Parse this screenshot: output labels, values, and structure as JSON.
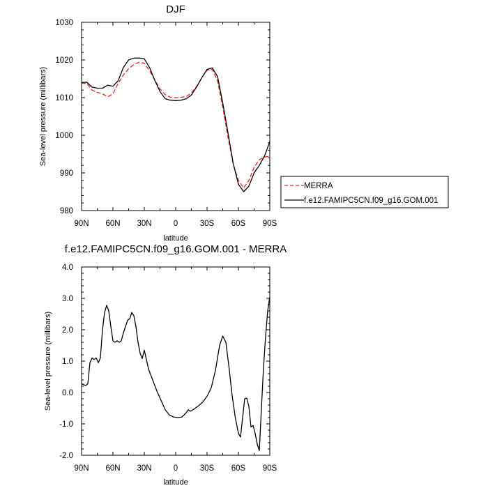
{
  "chart_data": [
    {
      "type": "line",
      "title": "DJF",
      "xlabel": "latitude",
      "ylabel": "Sea-level pressure (millibars)",
      "xlim": [
        90,
        -90
      ],
      "ylim": [
        980,
        1030
      ],
      "x_ticks": [
        {
          "value": 90,
          "label": "90N"
        },
        {
          "value": 60,
          "label": "60N"
        },
        {
          "value": 30,
          "label": "30N"
        },
        {
          "value": 0,
          "label": "0"
        },
        {
          "value": -30,
          "label": "30S"
        },
        {
          "value": -60,
          "label": "60S"
        },
        {
          "value": -90,
          "label": "90S"
        }
      ],
      "y_ticks": [
        {
          "value": 980,
          "label": "980"
        },
        {
          "value": 990,
          "label": "990"
        },
        {
          "value": 1000,
          "label": "1000"
        },
        {
          "value": 1010,
          "label": "1010"
        },
        {
          "value": 1020,
          "label": "1020"
        },
        {
          "value": 1030,
          "label": "1030"
        }
      ],
      "legend_position": "right",
      "series": [
        {
          "name": "MERRA",
          "color": "#e8201e",
          "dash": "dashed",
          "x": [
            90,
            85,
            80,
            75,
            70,
            65,
            60,
            55,
            50,
            45,
            40,
            35,
            30,
            25,
            20,
            15,
            10,
            5,
            0,
            -5,
            -10,
            -15,
            -20,
            -25,
            -30,
            -35,
            -40,
            -45,
            -50,
            -55,
            -60,
            -65,
            -70,
            -75,
            -80,
            -85,
            -90
          ],
          "y": [
            1013.8,
            1013.8,
            1012.0,
            1011.4,
            1011.0,
            1010.2,
            1011.0,
            1013.8,
            1016.0,
            1017.7,
            1018.8,
            1019.4,
            1019.1,
            1017.2,
            1014.7,
            1012.3,
            1010.8,
            1010.1,
            1010.0,
            1010.1,
            1010.3,
            1011.2,
            1013.0,
            1015.3,
            1017.3,
            1017.5,
            1014.5,
            1007.5,
            999.5,
            992.3,
            988.0,
            986.0,
            988.0,
            991.5,
            993.5,
            994.2,
            994.5
          ]
        },
        {
          "name": "f.e12.FAMIPC5CN.f09_g16.GOM.001",
          "color": "#000000",
          "dash": "solid",
          "x": [
            90,
            85,
            80,
            75,
            70,
            65,
            60,
            55,
            50,
            45,
            40,
            35,
            30,
            25,
            20,
            15,
            10,
            5,
            0,
            -5,
            -10,
            -15,
            -20,
            -25,
            -30,
            -35,
            -40,
            -45,
            -50,
            -55,
            -60,
            -65,
            -70,
            -75,
            -80,
            -85,
            -90
          ],
          "y": [
            1014.0,
            1014.1,
            1012.8,
            1012.5,
            1012.5,
            1013.3,
            1013.0,
            1014.5,
            1018.0,
            1020.0,
            1020.5,
            1020.5,
            1020.3,
            1018.0,
            1014.6,
            1011.6,
            1009.7,
            1009.3,
            1009.2,
            1009.3,
            1009.7,
            1010.7,
            1012.8,
            1015.3,
            1017.5,
            1017.9,
            1015.6,
            1008.6,
            1000.7,
            992.5,
            987.0,
            985.0,
            986.5,
            990.0,
            992.0,
            994.5,
            998.3
          ]
        }
      ]
    },
    {
      "type": "line",
      "title": "f.e12.FAMIPC5CN.f09_g16.GOM.001 - MERRA",
      "xlabel": "latitude",
      "ylabel": "Sea-level pressure (millibars)",
      "xlim": [
        90,
        -90
      ],
      "ylim": [
        -2.0,
        4.0
      ],
      "x_ticks": [
        {
          "value": 90,
          "label": "90N"
        },
        {
          "value": 60,
          "label": "60N"
        },
        {
          "value": 30,
          "label": "30N"
        },
        {
          "value": 0,
          "label": "0"
        },
        {
          "value": -30,
          "label": "30S"
        },
        {
          "value": -60,
          "label": "60S"
        },
        {
          "value": -90,
          "label": "90S"
        }
      ],
      "y_ticks": [
        {
          "value": -2,
          "label": "-2.0"
        },
        {
          "value": -1,
          "label": "-1.0"
        },
        {
          "value": 0,
          "label": "0.0"
        },
        {
          "value": 1,
          "label": "1.0"
        },
        {
          "value": 2,
          "label": "2.0"
        },
        {
          "value": 3,
          "label": "3.0"
        },
        {
          "value": 4,
          "label": "4.0"
        }
      ],
      "series": [
        {
          "color": "#000000",
          "dash": "solid",
          "x": [
            90,
            88,
            86,
            84,
            82,
            80,
            78,
            76,
            74,
            72,
            70,
            68,
            66,
            64,
            62,
            60,
            58,
            56,
            54,
            52,
            50,
            48,
            46,
            44,
            42,
            40,
            38,
            36,
            34,
            32,
            30,
            26,
            22,
            18,
            14,
            10,
            6,
            2,
            -2,
            -6,
            -10,
            -12,
            -14,
            -18,
            -22,
            -26,
            -30,
            -34,
            -38,
            -42,
            -45,
            -48,
            -51,
            -54,
            -57,
            -60,
            -62,
            -64,
            -66,
            -68,
            -70,
            -72,
            -74,
            -76,
            -78,
            -80,
            -82,
            -84,
            -86,
            -88,
            -90
          ],
          "y": [
            0.28,
            0.25,
            0.22,
            0.28,
            0.95,
            1.1,
            1.05,
            1.1,
            0.95,
            1.1,
            2.0,
            2.55,
            2.78,
            2.6,
            2.1,
            1.65,
            1.6,
            1.65,
            1.6,
            1.65,
            1.9,
            2.1,
            2.3,
            2.35,
            2.55,
            2.45,
            2.1,
            1.6,
            1.25,
            1.08,
            1.35,
            0.75,
            0.4,
            0.05,
            -0.25,
            -0.55,
            -0.72,
            -0.78,
            -0.8,
            -0.78,
            -0.65,
            -0.55,
            -0.6,
            -0.52,
            -0.42,
            -0.3,
            -0.12,
            0.15,
            0.7,
            1.5,
            1.8,
            1.6,
            0.8,
            -0.1,
            -0.8,
            -1.3,
            -1.42,
            -0.8,
            -0.2,
            -0.18,
            -0.45,
            -1.1,
            -1.05,
            -1.3,
            -1.65,
            -1.85,
            -0.5,
            0.8,
            1.8,
            2.6,
            3.05
          ]
        }
      ]
    }
  ]
}
